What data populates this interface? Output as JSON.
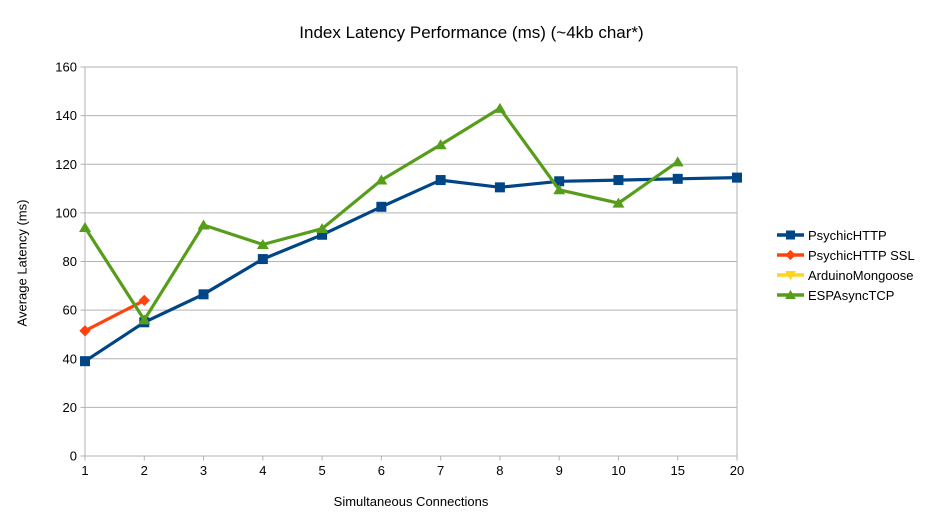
{
  "chart_data": {
    "type": "line",
    "title": "Index Latency Performance (ms) (~4kb char*)",
    "xlabel": "Simultaneous Connections",
    "ylabel": "Average Latency (ms)",
    "categories": [
      "1",
      "2",
      "3",
      "4",
      "5",
      "6",
      "7",
      "8",
      "9",
      "10",
      "15",
      "20"
    ],
    "ylim": [
      0,
      160
    ],
    "ytick_step": 20,
    "grid": "horizontal",
    "legend_position": "right",
    "series": [
      {
        "name": "PsychicHTTP",
        "color": "#004586",
        "marker": "square",
        "values": [
          39,
          55,
          66.5,
          81,
          91,
          102.5,
          113.5,
          110.5,
          113,
          113.5,
          114,
          114.5
        ]
      },
      {
        "name": "PsychicHTTP SSL",
        "color": "#ff420e",
        "marker": "diamond",
        "values": [
          51.5,
          64,
          null,
          null,
          null,
          null,
          null,
          null,
          null,
          null,
          null,
          null
        ]
      },
      {
        "name": "ArduinoMongoose",
        "color": "#ffd320",
        "marker": "triangle-down",
        "values": [
          null,
          null,
          null,
          null,
          null,
          null,
          null,
          null,
          null,
          null,
          null,
          null
        ]
      },
      {
        "name": "ESPAsyncTCP",
        "color": "#579d1c",
        "marker": "triangle-up",
        "values": [
          94,
          56,
          95,
          87,
          93.5,
          113.5,
          128,
          143,
          109.5,
          104,
          121,
          null
        ]
      }
    ],
    "colors": {
      "grid": "#b3b3b3",
      "axis": "#b3b3b3",
      "text": "#000000",
      "background": "#ffffff"
    }
  }
}
